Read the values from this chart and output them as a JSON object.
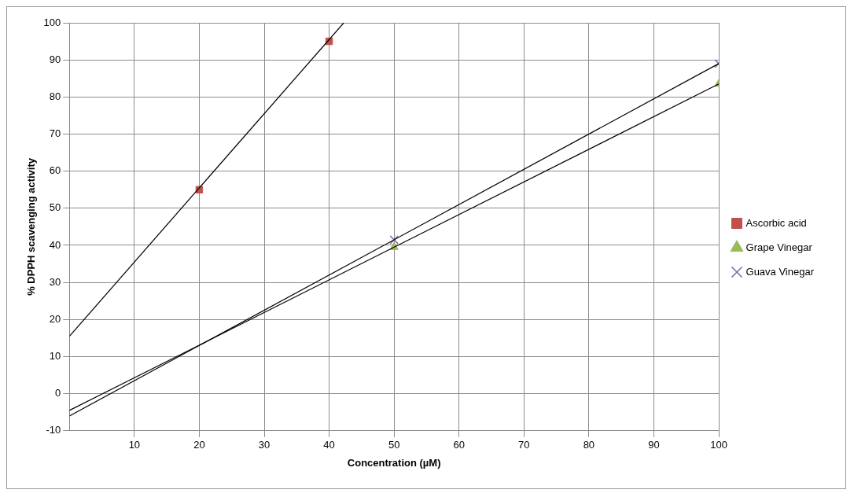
{
  "chart_data": {
    "type": "scatter",
    "xlabel": "Concentration (µM)",
    "ylabel": "% DPPH scavenging activity",
    "xlim": [
      0,
      100
    ],
    "xticks": [
      10,
      20,
      30,
      40,
      50,
      60,
      70,
      80,
      90,
      100
    ],
    "ylim": [
      -10,
      100
    ],
    "yticks": [
      -10,
      0,
      10,
      20,
      30,
      40,
      50,
      60,
      70,
      80,
      90,
      100
    ],
    "grid": true,
    "legend": "right",
    "series": [
      {
        "name": "Ascorbic acid",
        "color": "#c0504d",
        "marker": "square",
        "x": [
          20,
          40
        ],
        "values": [
          55,
          95
        ]
      },
      {
        "name": "Grape Vinegar",
        "color": "#9bbb59",
        "marker": "triangle",
        "x": [
          50,
          100
        ],
        "values": [
          39.5,
          83.5
        ]
      },
      {
        "name": "Guava Vinegar",
        "color": "#8064a2",
        "marker": "cross",
        "x": [
          50,
          100
        ],
        "values": [
          41.5,
          89
        ]
      },
      {
        "type": "line",
        "color": "#000000",
        "marker": "none",
        "x": [
          0,
          42.25
        ],
        "values": [
          15.5,
          100
        ]
      },
      {
        "type": "line",
        "color": "#000000",
        "marker": "none",
        "x": [
          0,
          100
        ],
        "values": [
          -4.5,
          83.5
        ]
      },
      {
        "type": "line",
        "color": "#000000",
        "marker": "none",
        "x": [
          0,
          100
        ],
        "values": [
          -6,
          89
        ]
      }
    ]
  }
}
